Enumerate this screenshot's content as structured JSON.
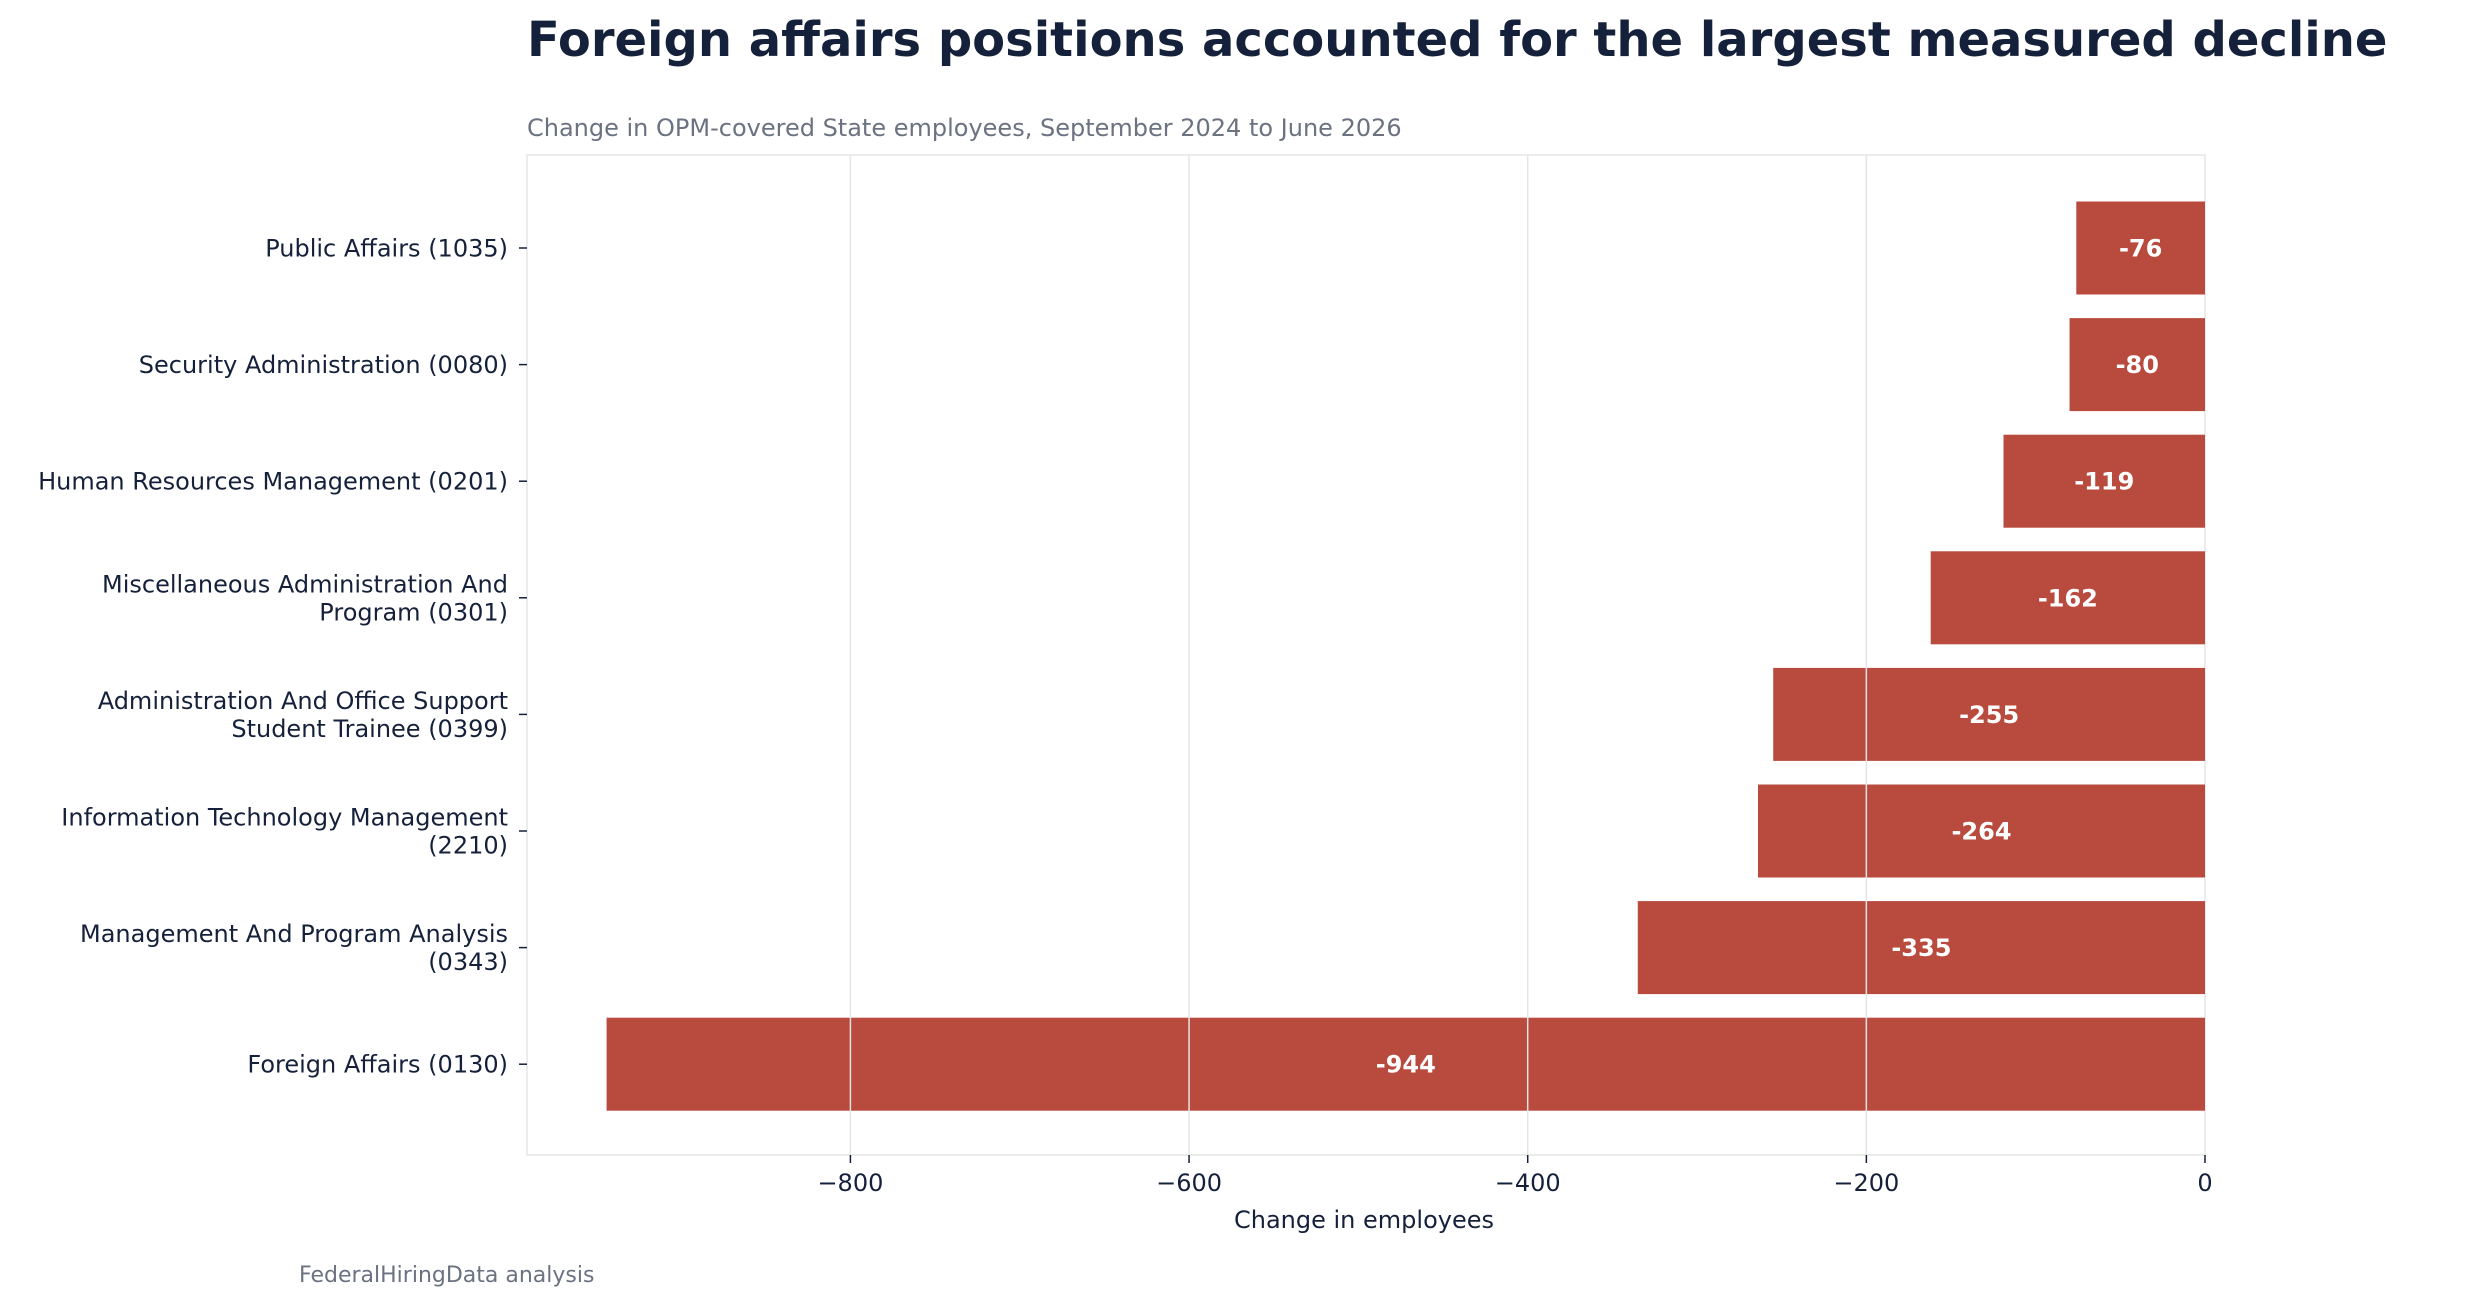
{
  "chart_data": {
    "type": "bar",
    "orientation": "horizontal",
    "title": "Foreign affairs positions accounted for the largest measured decline",
    "subtitle": "Change in OPM-covered State employees, September 2024 to June 2026",
    "xlabel": "Change in employees",
    "ylabel": "",
    "categories": [
      "Public Affairs (1035)",
      "Security Administration (0080)",
      "Human Resources Management (0201)",
      "Miscellaneous Administration And Program (0301)",
      "Administration And Office Support Student Trainee (0399)",
      "Information Technology Management (2210)",
      "Management And Program Analysis (0343)",
      "Foreign Affairs (0130)"
    ],
    "category_label_lines": [
      [
        "Public Affairs (1035)"
      ],
      [
        "Security Administration (0080)"
      ],
      [
        "Human Resources Management (0201)"
      ],
      [
        "Miscellaneous Administration And",
        "Program (0301)"
      ],
      [
        "Administration And Office Support",
        "Student Trainee (0399)"
      ],
      [
        "Information Technology Management",
        "(2210)"
      ],
      [
        "Management And Program Analysis",
        "(0343)"
      ],
      [
        "Foreign Affairs (0130)"
      ]
    ],
    "values": [
      -76,
      -80,
      -119,
      -162,
      -255,
      -264,
      -335,
      -944
    ],
    "data_labels": [
      "-76",
      "-80",
      "-119",
      "-162",
      "-255",
      "-264",
      "-335",
      "-944"
    ],
    "xlim": [
      -991,
      0
    ],
    "xticks": [
      -800,
      -600,
      -400,
      -200,
      0
    ],
    "xtick_labels": [
      "−800",
      "−600",
      "−400",
      "−200",
      "0"
    ],
    "grid": "vertical",
    "legend": "none",
    "bar_color": "#b84a3e",
    "grid_color": "#e5e5e5",
    "source_note": "FederalHiringData analysis"
  }
}
